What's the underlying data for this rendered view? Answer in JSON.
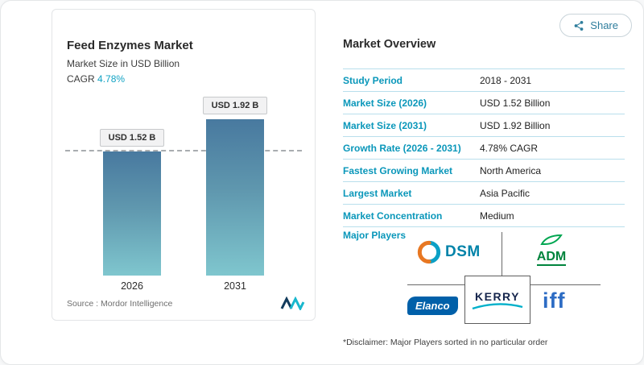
{
  "share": {
    "label": "Share"
  },
  "left_card": {
    "title": "Feed Enzymes Market",
    "subtitle": "Market Size in USD Billion",
    "cagr_label": "CAGR",
    "cagr_value": "4.78%",
    "source_label": "Source :",
    "source_value": "Mordor Intelligence"
  },
  "chart_data": {
    "type": "bar",
    "title": "Feed Enzymes Market",
    "ylabel": "Market Size in USD Billion",
    "categories": [
      "2026",
      "2031"
    ],
    "values": [
      1.52,
      1.92
    ],
    "value_labels": [
      "USD 1.52 B",
      "USD 1.92 B"
    ],
    "ylim": [
      0,
      2.2
    ],
    "dashed_line_at": 1.52,
    "grid": false,
    "bar_gradient": [
      "#48799f",
      "#7fc6ce"
    ]
  },
  "overview": {
    "title": "Market Overview",
    "rows": [
      {
        "label": "Study Period",
        "value": "2018 - 2031"
      },
      {
        "label": "Market Size (2026)",
        "value": "USD 1.52 Billion"
      },
      {
        "label": "Market Size (2031)",
        "value": "USD 1.92 Billion"
      },
      {
        "label": "Growth Rate (2026 - 2031)",
        "value": "4.78% CAGR"
      },
      {
        "label": "Fastest Growing Market",
        "value": "North America"
      },
      {
        "label": "Largest Market",
        "value": "Asia Pacific"
      },
      {
        "label": "Market Concentration",
        "value": "Medium"
      }
    ],
    "major_players_label": "Major Players",
    "players": [
      {
        "name": "DSM"
      },
      {
        "name": "ADM"
      },
      {
        "name": "Elanco"
      },
      {
        "name": "KERRY"
      },
      {
        "name": "iff"
      }
    ],
    "disclaimer": "*Disclaimer: Major Players sorted in no particular order"
  },
  "colors": {
    "accent_teal": "#0a97ba",
    "table_divider": "#b9dfec",
    "bar_top": "#48799f",
    "bar_bottom": "#7fc6ce"
  }
}
